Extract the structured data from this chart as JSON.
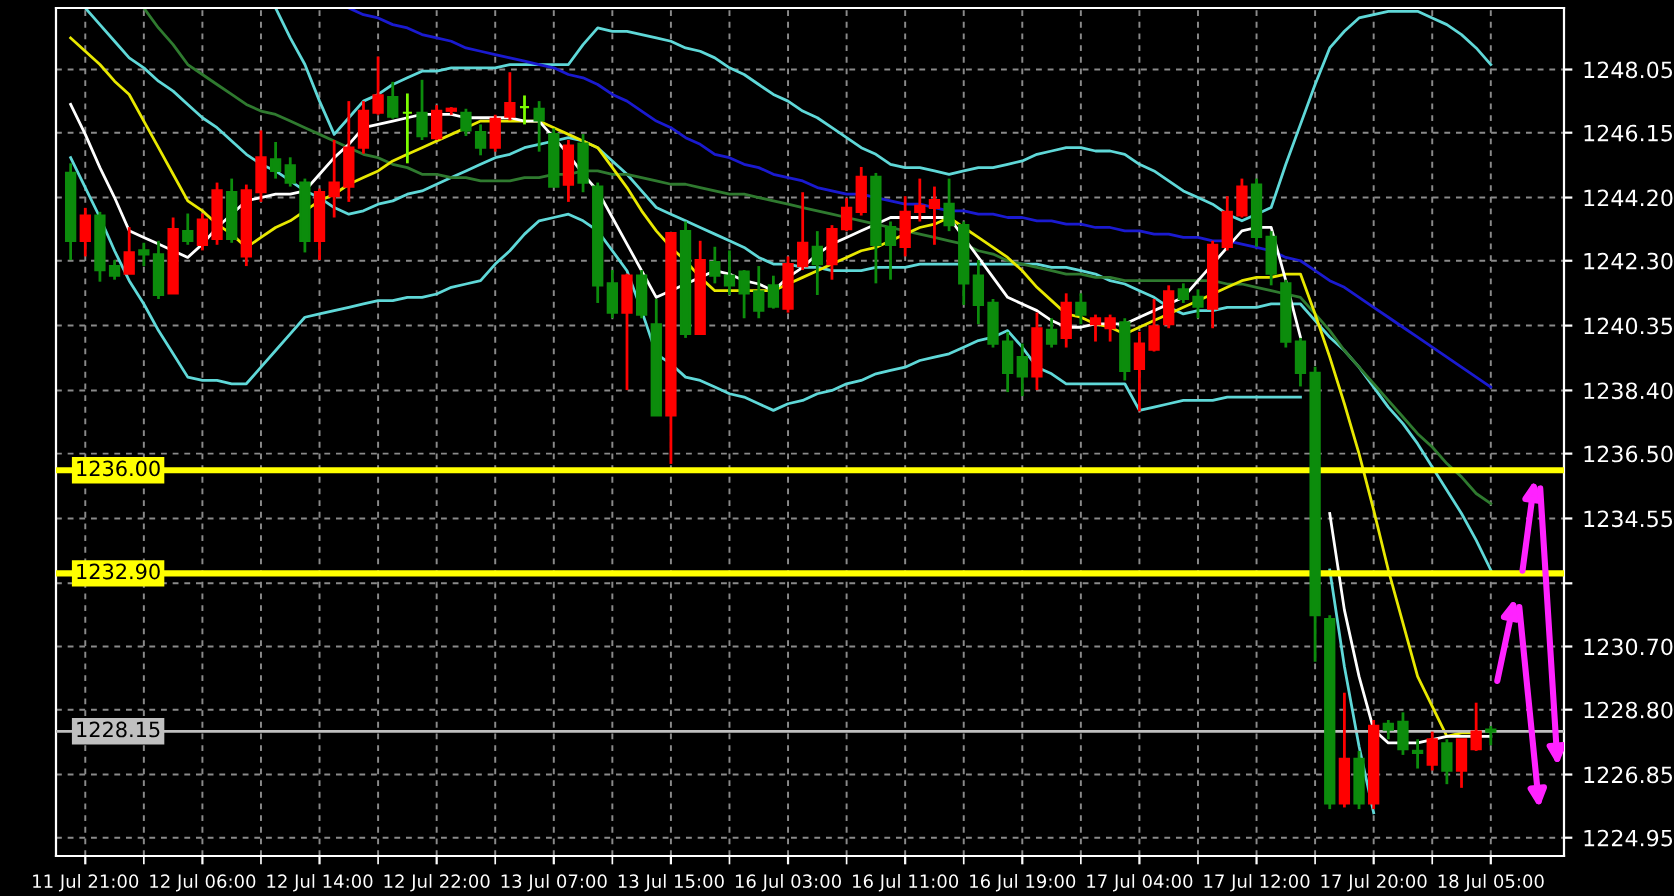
{
  "chart_data": {
    "type": "candlestick",
    "categories": [
      null,
      "11 Jul 21:00",
      null,
      null,
      null,
      null,
      null,
      null,
      null,
      "12 Jul 06:00",
      null,
      null,
      null,
      null,
      null,
      null,
      null,
      "12 Jul 14:00",
      null,
      null,
      null,
      null,
      null,
      null,
      null,
      "12 Jul 22:00",
      null,
      null,
      null,
      null,
      null,
      null,
      null,
      "13 Jul 07:00",
      null,
      null,
      null,
      null,
      null,
      null,
      null,
      "13 Jul 15:00",
      null,
      null,
      null,
      null,
      null,
      null,
      null,
      "16 Jul 03:00",
      null,
      null,
      null,
      null,
      null,
      null,
      null,
      "16 Jul 11:00",
      null,
      null,
      null,
      null,
      null,
      null,
      null,
      "16 Jul 19:00",
      null,
      null,
      null,
      null,
      null,
      null,
      null,
      "17 Jul 04:00",
      null,
      null,
      null,
      null,
      null,
      null,
      null,
      "17 Jul 12:00",
      null,
      null,
      null,
      null,
      null,
      null,
      null,
      "17 Jul 20:00",
      null,
      null,
      null,
      null,
      null,
      null,
      null,
      "18 Jul 05:00"
    ],
    "ohlc": [
      [
        1244.94,
        1245.23,
        1242.32,
        1242.9
      ],
      [
        1242.9,
        1243.89,
        1242.43,
        1243.66
      ],
      [
        1243.66,
        1243.77,
        1241.67,
        1242.02
      ],
      [
        1242.14,
        1242.32,
        1241.73,
        1241.85
      ],
      [
        1241.91,
        1243.31,
        1241.91,
        1242.55
      ],
      [
        1242.61,
        1242.84,
        1242.14,
        1242.49
      ],
      [
        1242.49,
        1242.9,
        1241.15,
        1241.27
      ],
      [
        1241.32,
        1243.6,
        1241.32,
        1243.25
      ],
      [
        1243.19,
        1243.72,
        1242.78,
        1242.9
      ],
      [
        1242.78,
        1243.72,
        1242.61,
        1243.54
      ],
      [
        1242.96,
        1244.65,
        1242.78,
        1244.42
      ],
      [
        1244.36,
        1244.77,
        1242.84,
        1242.96
      ],
      [
        1242.43,
        1244.59,
        1242.14,
        1244.42
      ],
      [
        1244.36,
        1246.22,
        1244.07,
        1245.41
      ],
      [
        1245.35,
        1245.87,
        1244.77,
        1245.0
      ],
      [
        1245.17,
        1245.41,
        1244.53,
        1244.65
      ],
      [
        1244.65,
        1244.77,
        1242.55,
        1242.9
      ],
      [
        1242.9,
        1244.47,
        1242.32,
        1244.36
      ],
      [
        1244.24,
        1245.93,
        1243.6,
        1244.65
      ],
      [
        1244.53,
        1247.1,
        1244.07,
        1245.7
      ],
      [
        1245.7,
        1247.1,
        1245.52,
        1246.81
      ],
      [
        1246.75,
        1248.44,
        1246.69,
        1247.27
      ],
      [
        1247.22,
        1247.68,
        1246.57,
        1246.63
      ],
      [
        1246.75,
        1247.33,
        1245.23,
        1246.75
      ],
      [
        1246.75,
        1247.74,
        1245.93,
        1246.05
      ],
      [
        1245.99,
        1246.98,
        1245.93,
        1246.81
      ],
      [
        1246.81,
        1246.92,
        1246.69,
        1246.87
      ],
      [
        1246.75,
        1246.87,
        1246.05,
        1246.22
      ],
      [
        1246.17,
        1246.4,
        1245.47,
        1245.7
      ],
      [
        1245.7,
        1246.69,
        1245.58,
        1246.57
      ],
      [
        1246.63,
        1247.97,
        1246.52,
        1247.04
      ],
      [
        1246.92,
        1247.27,
        1246.4,
        1246.92
      ],
      [
        1246.87,
        1247.1,
        1245.58,
        1246.52
      ],
      [
        1246.11,
        1246.28,
        1244.53,
        1244.53
      ],
      [
        1244.59,
        1245.93,
        1244.07,
        1245.76
      ],
      [
        1245.82,
        1246.11,
        1244.36,
        1244.65
      ],
      [
        1244.53,
        1244.65,
        1241.03,
        1241.56
      ],
      [
        1241.62,
        1242.02,
        1240.57,
        1240.74
      ],
      [
        1240.74,
        1241.91,
        1238.41,
        1241.85
      ],
      [
        1241.85,
        1242.02,
        1240.57,
        1240.68
      ],
      [
        1240.39,
        1241.15,
        1237.65,
        1237.65
      ],
      [
        1237.65,
        1243.13,
        1236.19,
        1243.13
      ],
      [
        1243.19,
        1243.48,
        1239.98,
        1240.1
      ],
      [
        1240.1,
        1242.9,
        1240.1,
        1242.32
      ],
      [
        1242.26,
        1242.72,
        1241.62,
        1241.85
      ],
      [
        1241.85,
        1242.61,
        1241.27,
        1241.56
      ],
      [
        1241.97,
        1242.02,
        1240.57,
        1241.32
      ],
      [
        1241.38,
        1242.14,
        1240.57,
        1240.8
      ],
      [
        1241.56,
        1241.85,
        1240.86,
        1240.92
      ],
      [
        1240.86,
        1242.43,
        1240.74,
        1242.2
      ],
      [
        1242.14,
        1244.36,
        1242.02,
        1242.84
      ],
      [
        1242.72,
        1243.19,
        1241.27,
        1242.2
      ],
      [
        1242.2,
        1243.37,
        1241.73,
        1243.25
      ],
      [
        1243.25,
        1244.18,
        1243.19,
        1243.89
      ],
      [
        1243.77,
        1245.12,
        1243.66,
        1244.82
      ],
      [
        1244.82,
        1244.94,
        1241.62,
        1242.78
      ],
      [
        1243.31,
        1243.48,
        1241.73,
        1242.78
      ],
      [
        1242.72,
        1244.24,
        1242.43,
        1243.77
      ],
      [
        1243.77,
        1244.77,
        1243.48,
        1243.95
      ],
      [
        1243.89,
        1244.53,
        1242.78,
        1244.12
      ],
      [
        1244.01,
        1244.77,
        1243.19,
        1243.37
      ],
      [
        1243.37,
        1243.48,
        1240.97,
        1241.62
      ],
      [
        1241.85,
        1242.32,
        1240.39,
        1240.97
      ],
      [
        1241.03,
        1241.15,
        1239.69,
        1239.81
      ],
      [
        1239.87,
        1240.16,
        1238.35,
        1238.93
      ],
      [
        1239.4,
        1239.81,
        1238.23,
        1238.82
      ],
      [
        1238.82,
        1240.74,
        1238.41,
        1240.27
      ],
      [
        1240.22,
        1240.57,
        1239.69,
        1239.81
      ],
      [
        1239.98,
        1241.32,
        1239.69,
        1241.03
      ],
      [
        1241.03,
        1241.32,
        1240.39,
        1240.68
      ],
      [
        1240.39,
        1240.68,
        1239.87,
        1240.57
      ],
      [
        1240.27,
        1240.68,
        1239.87,
        1240.57
      ],
      [
        1240.45,
        1240.57,
        1238.7,
        1238.99
      ],
      [
        1239.05,
        1240.16,
        1237.77,
        1239.81
      ],
      [
        1239.63,
        1241.15,
        1239.57,
        1240.33
      ],
      [
        1240.39,
        1241.56,
        1240.27,
        1241.38
      ],
      [
        1241.44,
        1241.62,
        1241.03,
        1241.15
      ],
      [
        1241.21,
        1241.44,
        1240.57,
        1240.92
      ],
      [
        1240.86,
        1242.9,
        1240.27,
        1242.78
      ],
      [
        1242.72,
        1244.24,
        1242.61,
        1243.77
      ],
      [
        1243.66,
        1244.77,
        1243.6,
        1244.53
      ],
      [
        1244.59,
        1244.77,
        1242.72,
        1243.02
      ],
      [
        1243.02,
        1243.19,
        1241.56,
        1241.91
      ],
      [
        1241.62,
        1241.73,
        1239.69,
        1239.87
      ],
      [
        1239.87,
        1239.98,
        1238.52,
        1238.93
      ],
      [
        1238.93,
        1239.11,
        1230.24,
        1231.64
      ],
      [
        1231.52,
        1231.64,
        1225.81,
        1225.98
      ],
      [
        1225.98,
        1229.31,
        1225.86,
        1227.32
      ],
      [
        1227.32,
        1227.56,
        1225.81,
        1225.98
      ],
      [
        1225.98,
        1228.49,
        1225.81,
        1228.31
      ],
      [
        1228.37,
        1228.49,
        1227.91,
        1228.2
      ],
      [
        1228.43,
        1228.72,
        1227.44,
        1227.61
      ],
      [
        1227.56,
        1227.91,
        1227.03,
        1227.5
      ],
      [
        1227.15,
        1228.14,
        1226.97,
        1227.91
      ],
      [
        1227.79,
        1227.91,
        1226.56,
        1226.97
      ],
      [
        1226.97,
        1227.91,
        1226.45,
        1227.91
      ],
      [
        1227.61,
        1229.01,
        1227.56,
        1228.14
      ],
      [
        1228.2,
        1228.31,
        1227.73,
        1228.14
      ]
    ],
    "colors": [
      "#0c8c0c",
      "#ff0000",
      "#0c8c0c",
      "#0c8c0c",
      "#ff0000",
      "#0c8c0c",
      "#0c8c0c",
      "#ff0000",
      "#0c8c0c",
      "#ff0000",
      "#ff0000",
      "#0c8c0c",
      "#ff0000",
      "#ff0000",
      "#0c8c0c",
      "#0c8c0c",
      "#0c8c0c",
      "#ff0000",
      "#ff0000",
      "#ff0000",
      "#ff0000",
      "#ff0000",
      "#0c8c0c",
      "#7cfc00",
      "#0c8c0c",
      "#ff0000",
      "#ff0000",
      "#0c8c0c",
      "#0c8c0c",
      "#ff0000",
      "#ff0000",
      "#7cfc00",
      "#0c8c0c",
      "#0c8c0c",
      "#ff0000",
      "#0c8c0c",
      "#0c8c0c",
      "#0c8c0c",
      "#ff0000",
      "#0c8c0c",
      "#0c8c0c",
      "#ff0000",
      "#0c8c0c",
      "#ff0000",
      "#0c8c0c",
      "#0c8c0c",
      "#0c8c0c",
      "#0c8c0c",
      "#0c8c0c",
      "#ff0000",
      "#ff0000",
      "#0c8c0c",
      "#ff0000",
      "#ff0000",
      "#ff0000",
      "#0c8c0c",
      "#0c8c0c",
      "#ff0000",
      "#ff0000",
      "#ff0000",
      "#0c8c0c",
      "#0c8c0c",
      "#0c8c0c",
      "#0c8c0c",
      "#0c8c0c",
      "#0c8c0c",
      "#ff0000",
      "#0c8c0c",
      "#ff0000",
      "#0c8c0c",
      "#ff0000",
      "#ff0000",
      "#0c8c0c",
      "#ff0000",
      "#ff0000",
      "#ff0000",
      "#0c8c0c",
      "#0c8c0c",
      "#ff0000",
      "#ff0000",
      "#ff0000",
      "#0c8c0c",
      "#0c8c0c",
      "#0c8c0c",
      "#0c8c0c",
      "#0c8c0c",
      "#0c8c0c",
      "#ff0000",
      "#0c8c0c",
      "#ff0000",
      "#0c8c0c",
      "#0c8c0c",
      "#0c8c0c",
      "#ff0000",
      "#0c8c0c",
      "#ff0000",
      "#ff0000",
      "#0c8c0c"
    ],
    "series": [
      {
        "type": "line",
        "color": "#5fd8d8",
        "values": [
          null,
          null,
          null,
          null,
          null,
          null,
          null,
          null,
          null,
          null,
          null,
          null,
          null,
          null,
          1249.9,
          1249.0,
          1248.2,
          1247.1,
          1246.1,
          1246.6,
          1247.1,
          1247.3,
          1247.6,
          1247.8,
          1248.0,
          1248.0,
          1248.1,
          1248.1,
          1248.1,
          1248.1,
          1248.2,
          1248.2,
          1248.2,
          1248.2,
          1248.2,
          1248.8,
          1249.3,
          1249.2,
          1249.2,
          1249.1,
          1249.0,
          1248.9,
          1248.7,
          1248.6,
          1248.4,
          1248.1,
          1247.9,
          1247.6,
          1247.3,
          1247.1,
          1246.8,
          1246.6,
          1246.3,
          1246.0,
          1245.7,
          1245.5,
          1245.2,
          1245.1,
          1245.1,
          1245.0,
          1244.9,
          1245.0,
          1245.1,
          1245.1,
          1245.2,
          1245.3,
          1245.5,
          1245.6,
          1245.7,
          1245.7,
          1245.6,
          1245.6,
          1245.5,
          1245.2,
          1245.0,
          1244.7,
          1244.4,
          1244.2,
          1244.0,
          1243.7,
          1243.5,
          1243.7,
          1243.9,
          1245.2,
          1246.4,
          1247.6,
          1248.7,
          1249.2,
          1249.6,
          1249.7,
          1249.8,
          1249.8,
          1249.8,
          1249.6,
          1249.4,
          1249.1,
          1248.7,
          1248.2
        ]
      },
      {
        "type": "line",
        "color": "#5fd8d8",
        "values": [
          1245.4,
          1244.5,
          1243.6,
          1242.6,
          1241.7,
          1241.0,
          1240.2,
          1239.5,
          1238.8,
          1238.7,
          1238.7,
          1238.6,
          1238.6,
          1239.1,
          1239.6,
          1240.1,
          1240.6,
          1240.7,
          1240.8,
          1240.9,
          1241.0,
          1241.1,
          1241.1,
          1241.2,
          1241.2,
          1241.3,
          1241.5,
          1241.6,
          1241.7,
          1242.2,
          1242.6,
          1243.1,
          1243.5,
          1243.6,
          1243.7,
          1243.5,
          1243.2,
          1242.6,
          1242.0,
          1240.8,
          1239.5,
          1239.2,
          1238.8,
          1238.7,
          1238.5,
          1238.3,
          1238.2,
          1238.0,
          1237.8,
          1238.0,
          1238.1,
          1238.3,
          1238.4,
          1238.6,
          1238.7,
          1238.9,
          1239.0,
          1239.1,
          1239.3,
          1239.4,
          1239.5,
          1239.7,
          1239.9,
          1240.0,
          1240.2,
          1239.7,
          1239.1,
          1238.9,
          1238.6,
          1238.6,
          1238.6,
          1238.6,
          1238.6,
          1237.8,
          1237.9,
          1238.0,
          1238.1,
          1238.1,
          1238.1,
          1238.2,
          1238.2,
          1238.2,
          1238.2,
          1238.2,
          1238.2,
          null,
          1233.0,
          1230.1,
          1227.7,
          1225.7,
          null,
          null,
          null,
          null,
          null,
          null,
          null,
          null
        ]
      },
      {
        "type": "line",
        "color": "#5fd8d8",
        "values": [
          null,
          1249.9,
          1249.4,
          1248.9,
          1248.4,
          1248.1,
          1247.7,
          1247.4,
          1247.0,
          1246.6,
          1246.3,
          1245.9,
          1245.5,
          1245.2,
          1245.0,
          1244.7,
          1244.4,
          1244.2,
          1243.9,
          1243.7,
          1243.8,
          1244.0,
          1244.1,
          1244.3,
          1244.4,
          1244.6,
          1244.8,
          1245.0,
          1245.2,
          1245.4,
          1245.5,
          1245.7,
          1245.8,
          1245.9,
          1246.0,
          1245.9,
          1245.7,
          1245.3,
          1244.9,
          1244.4,
          1243.9,
          1243.7,
          1243.5,
          1243.3,
          1243.1,
          1242.9,
          1242.7,
          1242.4,
          1242.2,
          1242.2,
          1242.1,
          1242.1,
          1242.0,
          1242.0,
          1242.0,
          1242.1,
          1242.1,
          1242.1,
          1242.2,
          1242.2,
          1242.2,
          1242.2,
          1242.2,
          1242.2,
          1242.2,
          1242.2,
          1242.2,
          1242.1,
          1242.1,
          1242.0,
          1241.9,
          1241.7,
          1241.6,
          1241.4,
          1241.2,
          1240.9,
          1240.7,
          1240.8,
          1240.8,
          1240.9,
          1240.9,
          1240.9,
          1241.0,
          1241.0,
          1241.0,
          1240.5,
          1240.0,
          1239.6,
          1239.1,
          1238.5,
          1237.9,
          1237.4,
          1236.8,
          1236.1,
          1235.4,
          1234.7,
          1233.9,
          1233.0
        ]
      },
      {
        "type": "line",
        "color": "#2f7a2f",
        "values": [
          null,
          null,
          null,
          null,
          null,
          1249.9,
          1249.3,
          1248.8,
          1248.2,
          1247.9,
          1247.6,
          1247.3,
          1247.0,
          1246.8,
          1246.7,
          1246.5,
          1246.3,
          1246.1,
          1245.9,
          1245.7,
          1245.5,
          1245.4,
          1245.2,
          1245.1,
          1244.9,
          1244.9,
          1244.8,
          1244.8,
          1244.7,
          1244.7,
          1244.7,
          1244.8,
          1244.8,
          1244.9,
          1244.9,
          1245.0,
          1245.0,
          1244.9,
          1244.9,
          1244.8,
          1244.7,
          1244.6,
          1244.6,
          1244.5,
          1244.4,
          1244.3,
          1244.3,
          1244.2,
          1244.1,
          1244.0,
          1243.9,
          1243.8,
          1243.7,
          1243.6,
          1243.5,
          1243.4,
          1243.3,
          1243.2,
          1243.1,
          1243.0,
          1242.9,
          1242.8,
          1242.6,
          1242.5,
          1242.3,
          1242.2,
          1242.1,
          1242.0,
          1241.9,
          1241.9,
          1241.8,
          1241.8,
          1241.7,
          1241.7,
          1241.7,
          1241.7,
          1241.7,
          1241.7,
          1241.7,
          1241.6,
          1241.6,
          1241.5,
          1241.4,
          1241.3,
          1241.2,
          1240.7,
          1240.2,
          1239.6,
          1239.1,
          1238.6,
          1238.1,
          1237.6,
          1237.1,
          1236.7,
          1236.2,
          1235.8,
          1235.3,
          1235.0
        ]
      },
      {
        "type": "line",
        "color": "#1a1ad0",
        "values": [
          null,
          null,
          null,
          null,
          null,
          null,
          null,
          null,
          null,
          null,
          null,
          null,
          null,
          null,
          null,
          null,
          null,
          null,
          null,
          1249.9,
          1249.7,
          1249.6,
          1249.4,
          1249.3,
          1249.1,
          1249.0,
          1248.9,
          1248.7,
          1248.6,
          1248.5,
          1248.4,
          1248.3,
          1248.2,
          1248.1,
          1247.9,
          1247.8,
          1247.6,
          1247.3,
          1247.1,
          1246.8,
          1246.5,
          1246.3,
          1246.0,
          1245.8,
          1245.5,
          1245.4,
          1245.2,
          1245.1,
          1244.9,
          1244.8,
          1244.7,
          1244.5,
          1244.4,
          1244.3,
          1244.3,
          1244.2,
          1244.1,
          1244.0,
          1244.0,
          1243.9,
          1243.8,
          1243.8,
          1243.7,
          1243.7,
          1243.6,
          1243.6,
          1243.5,
          1243.5,
          1243.4,
          1243.4,
          1243.3,
          1243.3,
          1243.2,
          1243.2,
          1243.1,
          1243.1,
          1243.0,
          1243.0,
          1242.9,
          1242.9,
          1242.8,
          1242.7,
          1242.6,
          1242.4,
          1242.3,
          1242.0,
          1241.7,
          1241.5,
          1241.2,
          1240.9,
          1240.6,
          1240.3,
          1240.0,
          1239.7,
          1239.4,
          1239.1,
          1238.8,
          1238.5
        ]
      },
      {
        "type": "line",
        "color": "#e8e800",
        "values": [
          1249.0,
          1248.6,
          1248.2,
          1247.7,
          1247.3,
          1246.5,
          1245.7,
          1244.9,
          1244.1,
          1243.8,
          1243.4,
          1243.1,
          1242.7,
          1243.0,
          1243.3,
          1243.5,
          1243.8,
          1244.1,
          1244.3,
          1244.6,
          1244.8,
          1245.0,
          1245.3,
          1245.5,
          1245.7,
          1245.9,
          1246.1,
          1246.3,
          1246.5,
          1246.5,
          1246.5,
          1246.5,
          1246.5,
          1246.3,
          1246.1,
          1245.9,
          1245.7,
          1245.1,
          1244.5,
          1243.8,
          1243.2,
          1242.7,
          1242.3,
          1241.8,
          1241.4,
          1241.4,
          1241.4,
          1241.4,
          1241.4,
          1241.6,
          1241.8,
          1242.0,
          1242.2,
          1242.4,
          1242.6,
          1242.7,
          1242.9,
          1243.1,
          1243.3,
          1243.4,
          1243.6,
          1243.3,
          1243.0,
          1242.7,
          1242.4,
          1242.0,
          1241.5,
          1241.1,
          1240.7,
          1240.6,
          1240.4,
          1240.3,
          1240.1,
          1240.3,
          1240.5,
          1240.7,
          1240.9,
          1241.1,
          1241.3,
          1241.5,
          1241.7,
          1241.8,
          1241.8,
          1241.9,
          1241.9,
          1240.7,
          1239.4,
          1238.0,
          1236.5,
          1234.8,
          1233.0,
          1231.4,
          1229.8,
          1228.9,
          1228.0,
          1228.1,
          1228.1,
          null
        ]
      },
      {
        "type": "line",
        "color": "#ffffff",
        "values": [
          1247.0,
          1246.1,
          1245.1,
          1244.2,
          1243.2,
          1243.0,
          1242.8,
          1242.6,
          1242.4,
          1242.8,
          1243.3,
          1243.7,
          1244.1,
          1244.2,
          1244.3,
          1244.3,
          1244.4,
          1244.9,
          1245.4,
          1245.8,
          1246.3,
          1246.4,
          1246.5,
          1246.6,
          1246.7,
          1246.7,
          1246.7,
          1246.6,
          1246.6,
          1246.6,
          1246.6,
          1246.5,
          1246.5,
          1246.0,
          1245.5,
          1244.9,
          1244.4,
          1243.6,
          1242.8,
          1242.0,
          1241.2,
          1241.4,
          1241.6,
          1241.8,
          1242.0,
          1241.9,
          1241.7,
          1241.6,
          1241.4,
          1241.8,
          1242.1,
          1242.5,
          1242.8,
          1243.0,
          1243.2,
          1243.4,
          1243.6,
          1243.6,
          1243.6,
          1243.6,
          1243.6,
          1243.0,
          1242.4,
          1241.8,
          1241.2,
          1241.0,
          1240.8,
          1240.5,
          1240.3,
          1240.3,
          1240.4,
          1240.4,
          1240.4,
          1240.6,
          1240.8,
          1241.0,
          1241.2,
          1241.7,
          1242.2,
          1242.7,
          1243.2,
          1243.3,
          1243.3,
          1241.7,
          1240.0,
          null,
          1234.7,
          1231.8,
          1229.8,
          1228.2,
          1227.8,
          1227.8,
          1227.8,
          1227.9,
          1228.0,
          1228.0,
          1228.0,
          1228.0
        ]
      }
    ],
    "ylim": [
      1224.4,
      1249.9
    ],
    "yticks": [
      1224.95,
      1226.85,
      {
        "value": 1228.8,
        "label": "1228.80"
      },
      {
        "value": 1230.7,
        "label": "1230.70"
      },
      {
        "value": 1232.6,
        "label": null
      },
      1234.55,
      {
        "value": 1236.5,
        "label": "1236.50"
      },
      {
        "value": 1238.4,
        "label": "1238.40"
      },
      1240.35,
      {
        "value": 1242.3,
        "label": "1242.30"
      },
      {
        "value": 1244.2,
        "label": "1244.20"
      },
      1246.15,
      1248.05
    ],
    "ref_lines": [
      {
        "axis": "y",
        "value": 1236.0,
        "label": "1236.00",
        "color": "#ffff00"
      },
      {
        "axis": "y",
        "value": 1232.9,
        "label": "1232.90",
        "color": "#ffff00"
      },
      {
        "axis": "y",
        "value": 1228.15,
        "label": "1228.15",
        "color": "#c0c0c0"
      }
    ],
    "grid": true
  }
}
